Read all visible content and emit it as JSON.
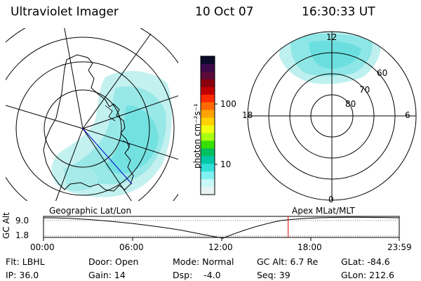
{
  "header": {
    "title": "Ultraviolet Imager",
    "date": "10 Oct 07",
    "time": "16:30:33 UT"
  },
  "colorbar": {
    "unit_label": "photon cm⁻²s⁻¹",
    "ticks": [
      "100",
      "10"
    ],
    "colors": [
      "#0a0a2a",
      "#3a0a4a",
      "#5a0a3a",
      "#8a0010",
      "#c00000",
      "#ff2a00",
      "#ff6a00",
      "#ffa400",
      "#ffd200",
      "#f0ff10",
      "#a8ff10",
      "#38e000",
      "#00c060",
      "#00c8a8",
      "#30e0d8",
      "#80f0f0",
      "#c8f8f8",
      "#e8f4f4"
    ]
  },
  "left_map": {
    "caption": "Geographic Lat/Lon"
  },
  "right_map": {
    "caption": "Apex MLat/MLT",
    "mlt_labels": {
      "top": "12",
      "left": "18",
      "right": "6",
      "bottom": "0"
    },
    "lat_labels": [
      "60",
      "70",
      "80"
    ]
  },
  "timeline": {
    "ylabel": "GC Alt",
    "ytick_top": "9.0",
    "ytick_bottom": "1.8",
    "xticks": [
      "00:00",
      "06:00",
      "12:00",
      "18:00",
      "23:59"
    ],
    "current_time_fraction": 0.6878,
    "marker_color": "#dd0000"
  },
  "info": {
    "filter": "Flt: LBHL",
    "ip": "IP: 36.0",
    "door": "Door: Open",
    "gain": "Gain: 14",
    "mode": "Mode: Normal",
    "dsp": "Dsp:    -4.0",
    "gc_alt": "GC Alt: 6.7 Re",
    "seq": "Seq: 39",
    "glat": "GLat: -84.6",
    "glon": "GLon: 212.6"
  }
}
